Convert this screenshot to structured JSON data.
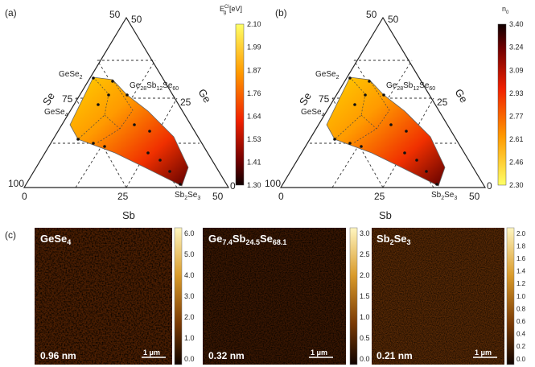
{
  "panels": {
    "a": {
      "letter": "(a)",
      "colorbar": {
        "label_main": "E",
        "label_sub": "g",
        "label_sup": "Cl",
        "label_unit": "[eV]",
        "ticks": [
          "2.10",
          "1.99",
          "1.87",
          "1.76",
          "1.64",
          "1.53",
          "1.41",
          "1.30"
        ],
        "colors": [
          "#ffff66",
          "#ffd200",
          "#ff9a00",
          "#ff5a00",
          "#f02000",
          "#c00000",
          "#700000",
          "#1a0000"
        ]
      },
      "axis_labels": {
        "left": "Se",
        "right": "Ge",
        "bottom": "Sb"
      },
      "ticks": {
        "apex_left": "50",
        "apex_right": "50",
        "left_mid": "75",
        "left_corner": "100",
        "right_mid": "25",
        "right_corner": "0",
        "bottom_left": "0",
        "bottom_mid": "25",
        "bottom_right": "50"
      },
      "compounds": {
        "gese2": "GeSe",
        "gese2_sub": "2",
        "gese4": "GeSe",
        "gese4_sub": "4",
        "mid_ge": "Ge",
        "mid_ge_sub": "28",
        "mid_sb": "Sb",
        "mid_sb_sub": "12",
        "mid_se": "Se",
        "mid_se_sub": "60",
        "sb2se3_a": "Sb",
        "sb2se3_a_sub": "2",
        "sb2se3_b": "Se",
        "sb2se3_b_sub": "3"
      }
    },
    "b": {
      "letter": "(b)",
      "colorbar": {
        "label_main": "n",
        "label_sub": "0",
        "ticks": [
          "3.40",
          "3.24",
          "3.09",
          "2.93",
          "2.77",
          "2.61",
          "2.46",
          "2.30"
        ],
        "colors": [
          "#1a0000",
          "#700000",
          "#c00000",
          "#f02000",
          "#ff5a00",
          "#ff9a00",
          "#ffd200",
          "#ffff66"
        ]
      },
      "axis_labels": {
        "left": "Se",
        "right": "Ge",
        "bottom": "Sb"
      },
      "ticks": {
        "apex_left": "50",
        "apex_right": "50",
        "left_mid": "75",
        "left_corner": "100",
        "right_mid": "25",
        "right_corner": "0",
        "bottom_left": "0",
        "bottom_mid": "25",
        "bottom_right": "50"
      },
      "compounds": {
        "gese2": "GeSe",
        "gese2_sub": "2",
        "gese4": "GeSe",
        "gese4_sub": "4",
        "mid_ge": "Ge",
        "mid_ge_sub": "28",
        "mid_sb": "Sb",
        "mid_sb_sub": "12",
        "mid_se": "Se",
        "mid_se_sub": "60",
        "sb2se3_a": "Sb",
        "sb2se3_a_sub": "2",
        "sb2se3_b": "Se",
        "sb2se3_b_sub": "3"
      }
    },
    "c": {
      "letter": "(c)",
      "images": [
        {
          "title": "GeSe",
          "title_sub": "4",
          "roughness": "0.96 nm",
          "scale": "1 μm",
          "cbar_ticks": [
            "6.0",
            "5.0",
            "4.0",
            "3.0",
            "2.0",
            "1.0",
            "0.0"
          ]
        },
        {
          "title_ge": "Ge",
          "title_ge_sub": "7.4",
          "title_sb": "Sb",
          "title_sb_sub": "24.5",
          "title_se": "Se",
          "title_se_sub": "68.1",
          "roughness": "0.32 nm",
          "scale": "1 μm",
          "cbar_ticks": [
            "3.0",
            "2.5",
            "2.0",
            "1.5",
            "1.0",
            "0.5",
            "0.0"
          ]
        },
        {
          "title_a": "Sb",
          "title_a_sub": "2",
          "title_b": "Se",
          "title_b_sub": "3",
          "roughness": "0.21 nm",
          "scale": "1 μm",
          "cbar_ticks": [
            "2.0",
            "1.8",
            "1.6",
            "1.4",
            "1.2",
            "1.0",
            "0.8",
            "0.6",
            "0.4",
            "0.2",
            "0.0"
          ]
        }
      ]
    }
  }
}
